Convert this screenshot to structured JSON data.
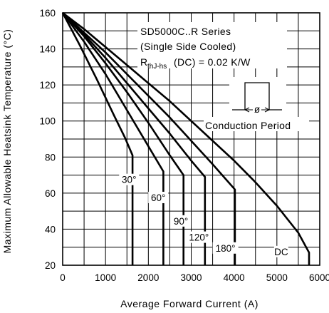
{
  "chart_data": {
    "type": "line",
    "xlabel": "Average Forward Current (A)",
    "ylabel": "Maximum Allowable Heatsink Temperature (°C)",
    "xlim": [
      0,
      6000
    ],
    "ylim": [
      20,
      160
    ],
    "x_ticks": [
      "0",
      "1000",
      "2000",
      "3000",
      "4000",
      "5000",
      "6000"
    ],
    "y_ticks": [
      "20",
      "40",
      "60",
      "80",
      "100",
      "120",
      "140",
      "160"
    ],
    "grid": true,
    "annotations": {
      "series_title": "SD5000C..R Series",
      "cooling": "(Single Side Cooled)",
      "rth_main": "R",
      "rth_sub": "thJ-hs",
      "rth_rest": "(DC) = 0.02 K/W",
      "conduction_period": "Conduction Period",
      "phi": "ø"
    },
    "series": [
      {
        "name": "30°",
        "label_x": 1550,
        "label_y": 66,
        "points": [
          [
            0,
            160
          ],
          [
            400,
            142
          ],
          [
            800,
            123
          ],
          [
            1200,
            103
          ],
          [
            1450,
            91
          ],
          [
            1630,
            81
          ],
          [
            1630,
            20
          ]
        ]
      },
      {
        "name": "60°",
        "label_x": 2230,
        "label_y": 56,
        "points": [
          [
            0,
            160
          ],
          [
            500,
            144
          ],
          [
            1000,
            126
          ],
          [
            1500,
            106
          ],
          [
            2000,
            86
          ],
          [
            2350,
            72
          ],
          [
            2350,
            20
          ]
        ]
      },
      {
        "name": "90°",
        "label_x": 2760,
        "label_y": 43,
        "points": [
          [
            0,
            160
          ],
          [
            500,
            147
          ],
          [
            1000,
            132
          ],
          [
            1500,
            116
          ],
          [
            2000,
            99
          ],
          [
            2500,
            81
          ],
          [
            2820,
            70
          ],
          [
            2820,
            20
          ]
        ]
      },
      {
        "name": "120°",
        "label_x": 3180,
        "label_y": 34,
        "points": [
          [
            0,
            160
          ],
          [
            500,
            148
          ],
          [
            1000,
            135
          ],
          [
            1500,
            121
          ],
          [
            2000,
            107
          ],
          [
            2500,
            93
          ],
          [
            3000,
            78
          ],
          [
            3320,
            69
          ],
          [
            3320,
            20
          ]
        ]
      },
      {
        "name": "180°",
        "label_x": 3800,
        "label_y": 28,
        "points": [
          [
            0,
            160
          ],
          [
            500,
            149
          ],
          [
            1000,
            138
          ],
          [
            1500,
            126
          ],
          [
            2000,
            114
          ],
          [
            2500,
            102
          ],
          [
            3000,
            89
          ],
          [
            3500,
            76
          ],
          [
            4020,
            62
          ],
          [
            4020,
            49
          ],
          [
            4020,
            20
          ]
        ]
      },
      {
        "name": "DC",
        "label_x": 5100,
        "label_y": 26,
        "points": [
          [
            0,
            160
          ],
          [
            500,
            151
          ],
          [
            1000,
            141
          ],
          [
            1500,
            131
          ],
          [
            2000,
            121
          ],
          [
            2500,
            111
          ],
          [
            3000,
            100
          ],
          [
            3500,
            89
          ],
          [
            4000,
            78
          ],
          [
            4500,
            66
          ],
          [
            5000,
            53
          ],
          [
            5500,
            38
          ],
          [
            5750,
            27
          ],
          [
            5750,
            20
          ]
        ]
      }
    ]
  }
}
